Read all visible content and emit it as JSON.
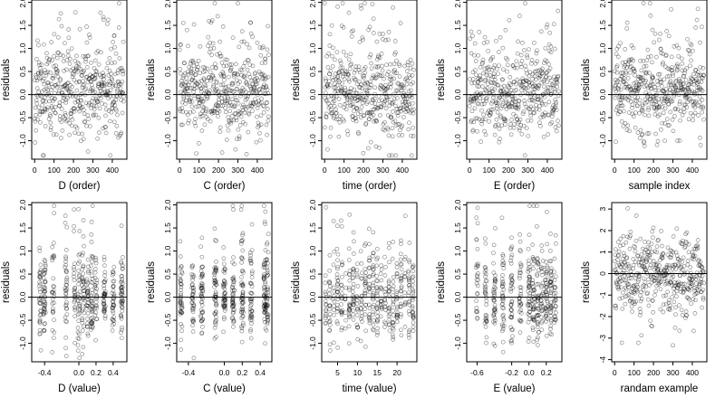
{
  "chart_data": [
    {
      "type": "scatter",
      "xlabel": "D (order)",
      "ylabel": "residuals",
      "xlim": [
        -15,
        475
      ],
      "ylim": [
        -1.4,
        2.05
      ],
      "xticks": [
        0,
        100,
        200,
        300,
        400
      ],
      "xtick_labels": [
        "0",
        "100",
        "200",
        "300",
        "400"
      ],
      "yticks": [
        -1,
        -0.5,
        0,
        0.5,
        1,
        1.5,
        2
      ],
      "ytick_labels": [
        "-1.0",
        "-0.5",
        "0.0",
        "0.5",
        "1.0",
        "1.5",
        "2.0"
      ],
      "hline": 0,
      "gen": {
        "kind": "order",
        "seed": 11,
        "n": 460
      }
    },
    {
      "type": "scatter",
      "xlabel": "C (order)",
      "ylabel": "residuals",
      "xlim": [
        -15,
        475
      ],
      "ylim": [
        -1.4,
        2.05
      ],
      "xticks": [
        0,
        100,
        200,
        300,
        400
      ],
      "xtick_labels": [
        "0",
        "100",
        "200",
        "300",
        "400"
      ],
      "yticks": [
        -1,
        -0.5,
        0,
        0.5,
        1,
        1.5,
        2
      ],
      "ytick_labels": [
        "-1.0",
        "-0.5",
        "0.0",
        "0.5",
        "1.0",
        "1.5",
        "2.0"
      ],
      "hline": 0,
      "gen": {
        "kind": "order",
        "seed": 23,
        "n": 460
      }
    },
    {
      "type": "scatter",
      "xlabel": "time (order)",
      "ylabel": "residuals",
      "xlim": [
        -15,
        475
      ],
      "ylim": [
        -1.4,
        2.05
      ],
      "xticks": [
        0,
        100,
        200,
        300,
        400
      ],
      "xtick_labels": [
        "0",
        "100",
        "200",
        "300",
        "400"
      ],
      "yticks": [
        -1,
        -0.5,
        0,
        0.5,
        1,
        1.5,
        2
      ],
      "ytick_labels": [
        "-1.0",
        "-0.5",
        "0.0",
        "0.5",
        "1.0",
        "1.5",
        "2.0"
      ],
      "hline": 0,
      "gen": {
        "kind": "order",
        "seed": 37,
        "n": 460
      }
    },
    {
      "type": "scatter",
      "xlabel": "E (order)",
      "ylabel": "residuals",
      "xlim": [
        -15,
        475
      ],
      "ylim": [
        -1.4,
        2.05
      ],
      "xticks": [
        0,
        100,
        200,
        300,
        400
      ],
      "xtick_labels": [
        "0",
        "100",
        "200",
        "300",
        "400"
      ],
      "yticks": [
        -1,
        -0.5,
        0,
        0.5,
        1,
        1.5,
        2
      ],
      "ytick_labels": [
        "-1.0",
        "-0.5",
        "0.0",
        "0.5",
        "1.0",
        "1.5",
        "2.0"
      ],
      "hline": 0,
      "gen": {
        "kind": "order",
        "seed": 41,
        "n": 460
      }
    },
    {
      "type": "scatter",
      "xlabel": "sample index",
      "ylabel": "residuals",
      "xlim": [
        -15,
        475
      ],
      "ylim": [
        -1.4,
        2.05
      ],
      "xticks": [
        0,
        100,
        200,
        300,
        400
      ],
      "xtick_labels": [
        "0",
        "100",
        "200",
        "300",
        "400"
      ],
      "yticks": [
        -1,
        -0.5,
        0,
        0.5,
        1,
        1.5,
        2
      ],
      "ytick_labels": [
        "-1.0",
        "-0.5",
        "0.0",
        "0.5",
        "1.0",
        "1.5",
        "2.0"
      ],
      "hline": 0,
      "gen": {
        "kind": "order",
        "seed": 53,
        "n": 460
      }
    },
    {
      "type": "scatter",
      "xlabel": "D (value)",
      "ylabel": "residuals",
      "xlim": [
        -0.55,
        0.56
      ],
      "ylim": [
        -1.4,
        2.05
      ],
      "xticks": [
        -0.4,
        0,
        0.2,
        0.4
      ],
      "xtick_labels": [
        "-0.4",
        "0.0",
        "0.2",
        "0.4"
      ],
      "yticks": [
        -1,
        -0.5,
        0,
        0.5,
        1,
        1.5,
        2
      ],
      "ytick_labels": [
        "-1.0",
        "-0.5",
        "0.0",
        "0.5",
        "1.0",
        "1.5",
        "2.0"
      ],
      "hline": 0,
      "gen": {
        "kind": "value",
        "seed": 61,
        "n": 460,
        "groups": [
          -0.45,
          -0.4,
          -0.3,
          -0.15,
          -0.05,
          0,
          0.05,
          0.1,
          0.15,
          0.2,
          0.3,
          0.4,
          0.5
        ],
        "jitter": 0.012
      }
    },
    {
      "type": "scatter",
      "xlabel": "C (value)",
      "ylabel": "residuals",
      "xlim": [
        -0.53,
        0.53
      ],
      "ylim": [
        -1.4,
        2.05
      ],
      "xticks": [
        -0.4,
        0,
        0.2,
        0.4
      ],
      "xtick_labels": [
        "-0.4",
        "0.0",
        "0.2",
        "0.4"
      ],
      "yticks": [
        -1,
        -0.5,
        0,
        0.5,
        1,
        1.5,
        2
      ],
      "ytick_labels": [
        "-1.0",
        "-0.5",
        "0.0",
        "0.5",
        "1.0",
        "1.5",
        "2.0"
      ],
      "hline": 0,
      "gen": {
        "kind": "value",
        "seed": 71,
        "n": 460,
        "groups": [
          -0.48,
          -0.35,
          -0.25,
          -0.1,
          0,
          0.1,
          0.2,
          0.3,
          0.45,
          0.48
        ],
        "jitter": 0.012
      }
    },
    {
      "type": "scatter",
      "xlabel": "time (value)",
      "ylabel": "residuals",
      "xlim": [
        1,
        25
      ],
      "ylim": [
        -1.4,
        2.05
      ],
      "xticks": [
        5,
        10,
        15,
        20
      ],
      "xtick_labels": [
        "5",
        "10",
        "15",
        "20"
      ],
      "yticks": [
        -1,
        -0.5,
        0,
        0.5,
        1,
        1.5,
        2
      ],
      "ytick_labels": [
        "-1.0",
        "-0.5",
        "0.0",
        "0.5",
        "1.0",
        "1.5",
        "2.0"
      ],
      "hline": 0,
      "gen": {
        "kind": "value",
        "seed": 83,
        "n": 460,
        "groups": [
          2,
          3,
          4,
          5,
          6,
          7,
          8,
          9,
          10,
          11,
          12,
          13,
          14,
          15,
          16,
          17,
          18,
          19,
          20,
          21,
          22,
          23,
          24
        ],
        "jitter": 0.15
      }
    },
    {
      "type": "scatter",
      "xlabel": "E (value)",
      "ylabel": "residuals",
      "xlim": [
        -0.72,
        0.38
      ],
      "ylim": [
        -1.4,
        2.05
      ],
      "xticks": [
        -0.6,
        -0.2,
        0,
        0.2
      ],
      "xtick_labels": [
        "-0.6",
        "-0.2",
        "0.0",
        "0.2"
      ],
      "yticks": [
        -1,
        -0.5,
        0,
        0.5,
        1,
        1.5,
        2
      ],
      "ytick_labels": [
        "-1.0",
        "-0.5",
        "0.0",
        "0.5",
        "1.0",
        "1.5",
        "2.0"
      ],
      "hline": 0,
      "gen": {
        "kind": "value",
        "seed": 97,
        "n": 460,
        "groups": [
          -0.6,
          -0.5,
          -0.4,
          -0.3,
          -0.2,
          -0.1,
          0,
          0.05,
          0.1,
          0.15,
          0.2,
          0.25,
          0.3
        ],
        "jitter": 0.012
      }
    },
    {
      "type": "scatter",
      "xlabel": "randam example",
      "ylabel": "residuals",
      "xlim": [
        -15,
        475
      ],
      "ylim": [
        -4.1,
        3.3
      ],
      "xticks": [
        0,
        100,
        200,
        300,
        400
      ],
      "xtick_labels": [
        "0",
        "100",
        "200",
        "300",
        "400"
      ],
      "yticks": [
        -4,
        -3,
        -2,
        -1,
        0,
        1,
        2,
        3
      ],
      "ytick_labels": [
        "-4",
        "-3",
        "-2",
        "-1",
        "0",
        "1",
        "2",
        "3"
      ],
      "hline": 0,
      "gen": {
        "kind": "normal",
        "seed": 109,
        "n": 460
      }
    }
  ]
}
